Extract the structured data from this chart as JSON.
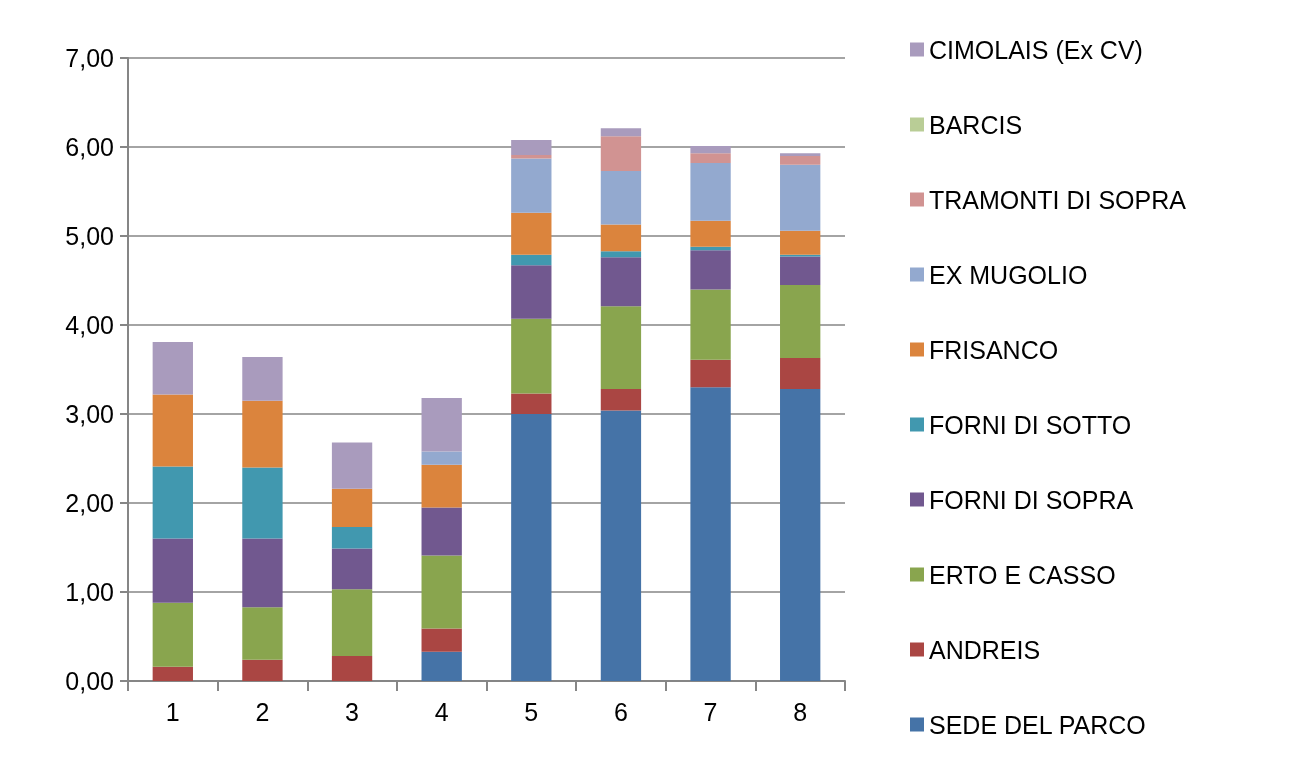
{
  "chart_data": {
    "type": "bar",
    "stacked": true,
    "categories": [
      "1",
      "2",
      "3",
      "4",
      "5",
      "6",
      "7",
      "8"
    ],
    "ylim": [
      0,
      7
    ],
    "yticks": [
      {
        "value": 0,
        "label": "0,00"
      },
      {
        "value": 1,
        "label": "1,00"
      },
      {
        "value": 2,
        "label": "2,00"
      },
      {
        "value": 3,
        "label": "3,00"
      },
      {
        "value": 4,
        "label": "4,00"
      },
      {
        "value": 5,
        "label": "5,00"
      },
      {
        "value": 6,
        "label": "6,00"
      },
      {
        "value": 7,
        "label": "7,00"
      }
    ],
    "grid": "y",
    "legend": "right",
    "series": [
      {
        "name": "SEDE DEL PARCO",
        "color": "#4573a7",
        "values": [
          0,
          0,
          0,
          0.33,
          3.0,
          3.04,
          3.3,
          3.28
        ]
      },
      {
        "name": "ANDREIS",
        "color": "#aa4643",
        "values": [
          0.16,
          0.24,
          0.28,
          0.26,
          0.23,
          0.24,
          0.31,
          0.35
        ]
      },
      {
        "name": "ERTO E CASSO",
        "color": "#89a54e",
        "values": [
          0.72,
          0.59,
          0.75,
          0.82,
          0.84,
          0.93,
          0.79,
          0.82
        ]
      },
      {
        "name": "FORNI DI SOPRA",
        "color": "#71588f",
        "values": [
          0.72,
          0.77,
          0.46,
          0.54,
          0.6,
          0.55,
          0.44,
          0.32
        ]
      },
      {
        "name": "FORNI DI SOTTO",
        "color": "#4198af",
        "values": [
          0.81,
          0.8,
          0.24,
          0,
          0.12,
          0.07,
          0.04,
          0.02
        ]
      },
      {
        "name": "FRISANCO",
        "color": "#db843d",
        "values": [
          0.81,
          0.75,
          0.43,
          0.48,
          0.47,
          0.3,
          0.29,
          0.27
        ]
      },
      {
        "name": "EX MUGOLIO",
        "color": "#93a9cf",
        "values": [
          0,
          0,
          0,
          0.15,
          0.61,
          0.6,
          0.65,
          0.74
        ]
      },
      {
        "name": "TRAMONTI DI SOPRA",
        "color": "#d19392",
        "values": [
          0,
          0,
          0,
          0,
          0.04,
          0.39,
          0.11,
          0.1
        ]
      },
      {
        "name": "BARCIS",
        "color": "#b9cd96",
        "values": [
          0,
          0,
          0,
          0,
          0,
          0,
          0,
          0
        ]
      },
      {
        "name": "CIMOLAIS (Ex CV)",
        "color": "#a99bbd",
        "values": [
          0.59,
          0.49,
          0.52,
          0.6,
          0.17,
          0.09,
          0.08,
          0.03
        ]
      }
    ]
  }
}
